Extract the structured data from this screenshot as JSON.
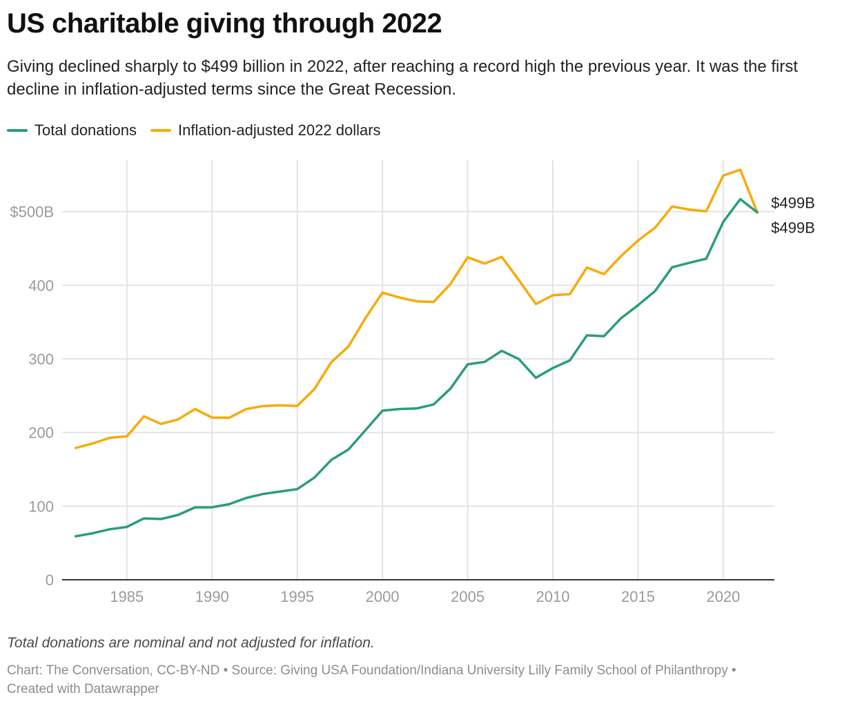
{
  "chart_data": {
    "type": "line",
    "title": "US charitable giving through 2022",
    "subtitle": "Giving declined sharply to $499 billion in 2022, after reaching a record high the previous year. It was the first decline in inflation-adjusted terms since the Great Recession.",
    "xlabel": "",
    "ylabel": "",
    "xlim": [
      1981.2,
      2023.0
    ],
    "ylim": [
      0,
      570
    ],
    "x_ticks": [
      1985,
      1990,
      1995,
      2000,
      2005,
      2010,
      2015,
      2020
    ],
    "x_tick_labels": [
      "1985",
      "1990",
      "1995",
      "2000",
      "2005",
      "2010",
      "2015",
      "2020"
    ],
    "y_ticks": [
      0,
      100,
      200,
      300,
      400,
      500
    ],
    "y_tick_labels": [
      "0",
      "100",
      "200",
      "300",
      "400",
      "$500B"
    ],
    "grid": true,
    "legend_position": "top-left",
    "x": [
      1982,
      1983,
      1984,
      1985,
      1986,
      1987,
      1988,
      1989,
      1990,
      1991,
      1992,
      1993,
      1994,
      1995,
      1996,
      1997,
      1998,
      1999,
      2000,
      2001,
      2002,
      2003,
      2004,
      2005,
      2006,
      2007,
      2008,
      2009,
      2010,
      2011,
      2012,
      2013,
      2014,
      2015,
      2016,
      2017,
      2018,
      2019,
      2020,
      2021,
      2022
    ],
    "series": [
      {
        "name": "Total donations",
        "color": "#2a9d78",
        "values": [
          59.1,
          63.2,
          68.6,
          71.7,
          83.3,
          82.5,
          88.0,
          98.3,
          98.4,
          102.7,
          111.1,
          116.5,
          119.9,
          123.1,
          138.7,
          162.8,
          176.8,
          203.1,
          229.7,
          231.9,
          232.7,
          238.0,
          260.0,
          292.6,
          296.0,
          311.0,
          299.8,
          274.4,
          287.5,
          298.0,
          332.0,
          330.8,
          355.2,
          372.9,
          392.2,
          424.5,
          430.5,
          436.0,
          486.0,
          517.0,
          499.0
        ],
        "end_label": "$499B"
      },
      {
        "name": "Inflation-adjusted 2022 dollars",
        "color": "#f6ab06",
        "values": [
          179.0,
          185.2,
          192.8,
          194.8,
          222.0,
          211.7,
          217.7,
          231.9,
          220.3,
          220.0,
          231.8,
          236.0,
          236.9,
          236.2,
          258.8,
          295.6,
          316.8,
          355.5,
          390.0,
          383.3,
          378.2,
          377.3,
          402.0,
          438.0,
          429.5,
          438.7,
          407.2,
          374.5,
          386.4,
          387.9,
          424.2,
          415.1,
          439.6,
          460.8,
          478.2,
          507.0,
          502.9,
          500.5,
          549.0,
          557.0,
          499.0
        ],
        "end_label": "$499B"
      }
    ]
  },
  "notes": "Total donations are nominal and not adjusted for inflation.",
  "footer": {
    "line1": "Chart: The Conversation, CC-BY-ND • Source: Giving USA Foundation/Indiana University Lilly Family School of Philanthropy •",
    "line2": "Created with Datawrapper"
  },
  "colors": {
    "grid": "#e3e3e3",
    "axis": "#333333",
    "tick_text": "#9a9a9a"
  }
}
